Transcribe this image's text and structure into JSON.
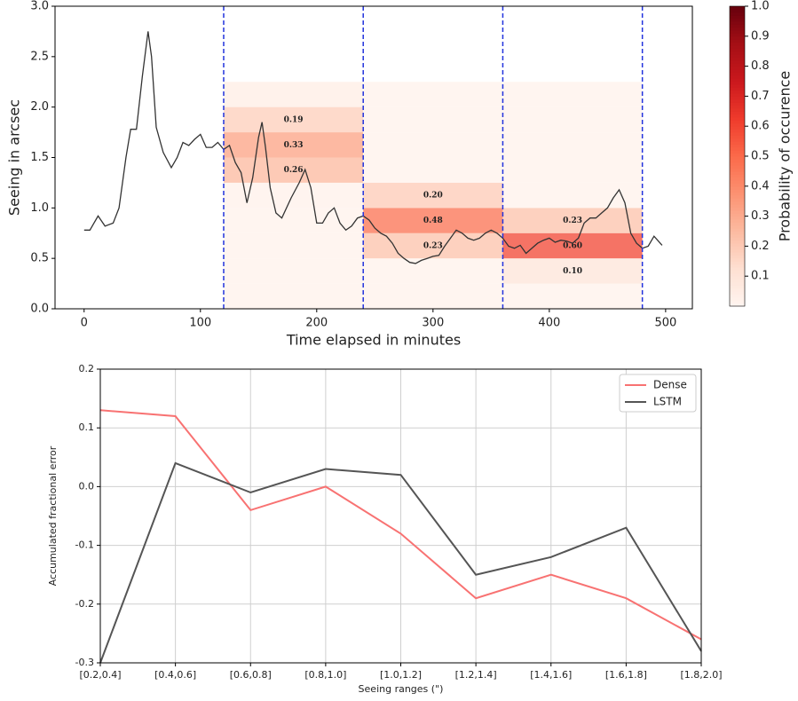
{
  "chart_data": [
    {
      "type": "line",
      "xlabel": "Time elapsed in minutes",
      "ylabel": "Seeing in arcsec",
      "x": [
        0,
        5,
        12,
        18,
        25,
        30,
        36,
        40,
        45,
        50,
        55,
        58,
        62,
        68,
        75,
        80,
        85,
        90,
        95,
        100,
        105,
        110,
        115,
        120,
        125,
        130,
        135,
        140,
        145,
        150,
        153,
        156,
        160,
        165,
        170,
        178,
        185,
        190,
        195,
        200,
        205,
        210,
        215,
        220,
        225,
        230,
        235,
        240,
        245,
        250,
        255,
        260,
        265,
        270,
        275,
        280,
        285,
        290,
        295,
        300,
        305,
        310,
        315,
        320,
        325,
        330,
        335,
        340,
        345,
        350,
        355,
        360,
        365,
        370,
        375,
        380,
        385,
        390,
        395,
        400,
        405,
        410,
        415,
        420,
        425,
        430,
        435,
        440,
        445,
        450,
        455,
        460,
        465,
        470,
        475,
        480,
        485,
        490,
        497
      ],
      "values": [
        0.78,
        0.78,
        0.92,
        0.82,
        0.85,
        1.0,
        1.5,
        1.78,
        1.78,
        2.3,
        2.75,
        2.5,
        1.8,
        1.55,
        1.4,
        1.5,
        1.65,
        1.62,
        1.68,
        1.73,
        1.6,
        1.6,
        1.65,
        1.58,
        1.62,
        1.45,
        1.35,
        1.05,
        1.3,
        1.7,
        1.85,
        1.6,
        1.2,
        0.95,
        0.9,
        1.1,
        1.25,
        1.38,
        1.2,
        0.85,
        0.85,
        0.95,
        1.0,
        0.85,
        0.78,
        0.82,
        0.9,
        0.92,
        0.88,
        0.8,
        0.75,
        0.72,
        0.65,
        0.55,
        0.5,
        0.46,
        0.45,
        0.48,
        0.5,
        0.52,
        0.53,
        0.62,
        0.7,
        0.78,
        0.75,
        0.7,
        0.68,
        0.7,
        0.75,
        0.78,
        0.75,
        0.7,
        0.62,
        0.6,
        0.63,
        0.55,
        0.6,
        0.65,
        0.68,
        0.7,
        0.66,
        0.68,
        0.67,
        0.65,
        0.7,
        0.85,
        0.9,
        0.9,
        0.95,
        1.0,
        1.1,
        1.18,
        1.05,
        0.75,
        0.65,
        0.6,
        0.62,
        0.72,
        0.63
      ],
      "color": "#333333",
      "xlim": [
        -25,
        523
      ],
      "xticks": [
        0,
        100,
        200,
        300,
        400,
        500
      ],
      "ylim": [
        0,
        3
      ],
      "yticks": [
        {
          "value": 0,
          "label": "0.0"
        },
        0.5,
        {
          "value": 1,
          "label": "1.0"
        },
        1.5,
        {
          "value": 2,
          "label": "2.0"
        },
        2.5,
        {
          "value": 3,
          "label": "3.0"
        }
      ],
      "vlines": [
        120,
        240,
        360,
        480
      ],
      "vline_color": "#2233dd",
      "heatmap": {
        "windows": [
          [
            120,
            240
          ],
          [
            240,
            360
          ],
          [
            360,
            480
          ]
        ],
        "bins": [
          0,
          0.25,
          0.5,
          0.75,
          1.0,
          1.25,
          1.5,
          1.75,
          2.0,
          2.25
        ],
        "values": [
          [
            0.02,
            0.02,
            0.02,
            0.02,
            0.03,
            0.26,
            0.33,
            0.19,
            0.05
          ],
          [
            0.02,
            0.02,
            0.23,
            0.48,
            0.2,
            0.02,
            0.02,
            0.02,
            0.02
          ],
          [
            0.02,
            0.1,
            0.6,
            0.23,
            0.02,
            0.02,
            0.02,
            0.02,
            0.02
          ]
        ],
        "value_labels": [
          [
            null,
            null,
            null,
            null,
            null,
            "0.26",
            "0.33",
            "0.19",
            null
          ],
          [
            null,
            null,
            "0.23",
            "0.48",
            "0.20",
            null,
            null,
            null,
            null
          ],
          [
            null,
            "0.10",
            "0.60",
            "0.23",
            null,
            null,
            null,
            null,
            null
          ]
        ]
      },
      "colorbar": {
        "label": "Probability of occurence",
        "lim": [
          0,
          1
        ],
        "ticks": [
          0.1,
          0.2,
          0.3,
          0.4,
          0.5,
          0.6,
          0.7,
          0.8,
          0.9,
          {
            "value": 1,
            "label": "1.0"
          }
        ],
        "colors": [
          "#fff5f0",
          "#fee0d2",
          "#fcbba1",
          "#fc9272",
          "#fb6a4a",
          "#ef3b2c",
          "#cb181d",
          "#a50f15",
          "#67000d"
        ]
      }
    },
    {
      "type": "line",
      "xlabel": "Seeing ranges (\")",
      "ylabel": "Accumulated fractional error",
      "categories": [
        "[0.2,0.4]",
        "[0.4,0.6]",
        "[0.6,0.8]",
        "[0.8,1.0]",
        "[1.0,1.2]",
        "[1.2,1.4]",
        "[1.4,1.6]",
        "[1.6,1.8]",
        "[1.8,2.0]"
      ],
      "series": [
        {
          "name": "Dense",
          "color": "#f87272",
          "values": [
            0.13,
            0.12,
            -0.04,
            0.0,
            -0.08,
            -0.19,
            -0.15,
            -0.19,
            -0.26
          ]
        },
        {
          "name": "LSTM",
          "color": "#555555",
          "values": [
            -0.3,
            0.04,
            -0.01,
            0.03,
            0.02,
            -0.15,
            -0.12,
            -0.07,
            -0.28
          ]
        }
      ],
      "ylim": [
        -0.3,
        0.2
      ],
      "yticks": [
        -0.3,
        -0.2,
        -0.1,
        {
          "value": 0,
          "label": "0.0"
        },
        0.1,
        0.2
      ],
      "grid": true,
      "legend": "upper right"
    }
  ]
}
